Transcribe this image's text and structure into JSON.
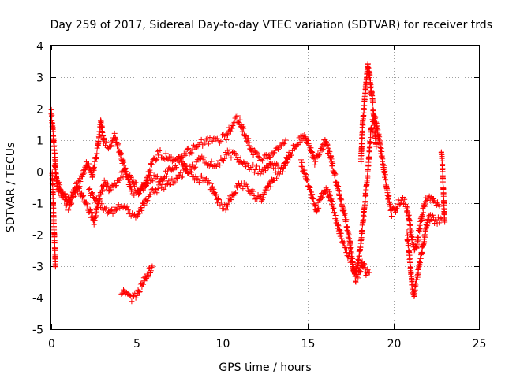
{
  "chart_data": {
    "type": "scatter",
    "title": "Day 259 of 2017, Sidereal Day-to-day VTEC variation (SDTVAR) for receiver trds",
    "xlabel": "GPS time / hours",
    "ylabel": "SDTVAR / TECUs",
    "xlim": [
      0,
      25
    ],
    "ylim": [
      -5,
      4
    ],
    "xticks": [
      "0",
      "5",
      "10",
      "15",
      "20",
      "25"
    ],
    "yticks": [
      "4",
      "3",
      "2",
      "1",
      "0",
      "-1",
      "-2",
      "-3",
      "-4",
      "-5"
    ],
    "grid": true,
    "marker": "+",
    "color": "#ff0000",
    "series": [
      {
        "name": "trds",
        "tracks": [
          [
            [
              0.0,
              1.9
            ],
            [
              0.1,
              1.3
            ],
            [
              0.2,
              0.6
            ],
            [
              0.3,
              -0.3
            ],
            [
              0.5,
              -0.6
            ],
            [
              0.8,
              -0.7
            ],
            [
              1.1,
              -1.0
            ],
            [
              1.5,
              -0.4
            ],
            [
              1.8,
              -0.2
            ],
            [
              2.1,
              0.3
            ],
            [
              2.4,
              -0.1
            ],
            [
              2.7,
              0.7
            ],
            [
              2.9,
              1.6
            ],
            [
              3.1,
              0.9
            ],
            [
              3.4,
              0.8
            ],
            [
              3.7,
              1.1
            ],
            [
              4.0,
              0.6
            ],
            [
              4.3,
              0.1
            ],
            [
              4.7,
              -0.6
            ],
            [
              5.1,
              -0.7
            ],
            [
              5.5,
              -0.4
            ],
            [
              5.9,
              0.3
            ],
            [
              6.3,
              0.6
            ],
            [
              6.7,
              0.5
            ],
            [
              7.2,
              0.3
            ],
            [
              7.7,
              0.5
            ],
            [
              8.2,
              0.7
            ],
            [
              8.7,
              0.9
            ],
            [
              9.2,
              1.0
            ],
            [
              9.7,
              1.0
            ],
            [
              10.2,
              1.1
            ],
            [
              10.6,
              1.5
            ],
            [
              10.9,
              1.7
            ],
            [
              11.3,
              1.2
            ],
            [
              11.7,
              0.7
            ],
            [
              12.2,
              0.4
            ],
            [
              12.7,
              0.5
            ],
            [
              13.2,
              0.8
            ],
            [
              13.7,
              1.0
            ]
          ],
          [
            [
              0.2,
              0.1
            ],
            [
              0.4,
              -0.4
            ],
            [
              0.7,
              -0.8
            ],
            [
              1.0,
              -1.1
            ],
            [
              1.3,
              -0.7
            ],
            [
              1.6,
              -0.5
            ],
            [
              1.9,
              -0.9
            ],
            [
              2.2,
              -1.2
            ],
            [
              2.5,
              -1.6
            ],
            [
              2.8,
              -0.8
            ],
            [
              3.1,
              -0.3
            ],
            [
              3.4,
              -0.6
            ],
            [
              3.7,
              -0.4
            ],
            [
              4.0,
              -0.2
            ],
            [
              4.3,
              0.0
            ],
            [
              4.6,
              -0.1
            ],
            [
              4.9,
              -0.4
            ],
            [
              5.2,
              -0.6
            ],
            [
              5.6,
              -0.3
            ],
            [
              6.0,
              -0.2
            ],
            [
              6.4,
              -0.3
            ],
            [
              6.8,
              0.0
            ],
            [
              7.2,
              0.2
            ],
            [
              7.6,
              0.4
            ],
            [
              8.0,
              0.0
            ],
            [
              8.5,
              -0.2
            ],
            [
              9.0,
              -0.3
            ],
            [
              9.4,
              -0.5
            ],
            [
              9.8,
              -1.0
            ],
            [
              10.2,
              -1.1
            ],
            [
              10.6,
              -0.7
            ],
            [
              11.0,
              -0.4
            ],
            [
              11.4,
              -0.5
            ],
            [
              11.8,
              -0.7
            ],
            [
              12.2,
              -0.9
            ],
            [
              12.6,
              -0.6
            ],
            [
              13.0,
              -0.2
            ],
            [
              13.4,
              0.0
            ],
            [
              13.8,
              0.3
            ]
          ],
          [
            [
              2.2,
              -0.6
            ],
            [
              2.6,
              -0.9
            ],
            [
              3.0,
              -1.1
            ],
            [
              3.4,
              -1.3
            ],
            [
              3.8,
              -1.2
            ],
            [
              4.2,
              -1.1
            ],
            [
              4.6,
              -1.3
            ],
            [
              5.0,
              -1.4
            ],
            [
              5.4,
              -1.0
            ],
            [
              5.8,
              -0.7
            ],
            [
              6.3,
              -0.5
            ],
            [
              6.8,
              -0.4
            ],
            [
              7.3,
              -0.2
            ],
            [
              7.8,
              0.0
            ],
            [
              8.3,
              0.2
            ],
            [
              8.8,
              0.4
            ],
            [
              9.3,
              0.2
            ],
            [
              9.8,
              0.3
            ],
            [
              10.3,
              0.6
            ],
            [
              10.8,
              0.5
            ],
            [
              11.3,
              0.2
            ],
            [
              11.8,
              0.1
            ],
            [
              12.3,
              0.0
            ],
            [
              12.8,
              0.3
            ],
            [
              13.3,
              0.1
            ]
          ],
          [
            [
              4.1,
              -3.8
            ],
            [
              4.4,
              -3.9
            ],
            [
              4.7,
              -4.0
            ],
            [
              5.0,
              -3.9
            ],
            [
              5.3,
              -3.6
            ],
            [
              5.6,
              -3.3
            ],
            [
              5.9,
              -3.0
            ]
          ],
          [
            [
              0.05,
              0.0
            ],
            [
              0.1,
              -0.8
            ],
            [
              0.15,
              -1.6
            ],
            [
              0.2,
              -2.3
            ],
            [
              0.25,
              -3.0
            ]
          ],
          [
            [
              13.6,
              0.2
            ],
            [
              14.0,
              0.6
            ],
            [
              14.4,
              0.9
            ],
            [
              14.8,
              1.2
            ],
            [
              15.1,
              0.8
            ],
            [
              15.4,
              0.3
            ],
            [
              15.7,
              0.6
            ],
            [
              16.0,
              1.0
            ],
            [
              16.3,
              0.5
            ],
            [
              16.6,
              -0.2
            ],
            [
              16.9,
              -0.8
            ],
            [
              17.2,
              -1.5
            ],
            [
              17.5,
              -2.4
            ],
            [
              17.7,
              -3.2
            ],
            [
              17.9,
              -3.0
            ],
            [
              18.1,
              -2.2
            ],
            [
              18.3,
              -1.2
            ],
            [
              18.5,
              0.0
            ],
            [
              18.7,
              1.4
            ],
            [
              18.9,
              1.8
            ],
            [
              19.1,
              1.2
            ],
            [
              19.3,
              0.6
            ],
            [
              19.5,
              -0.1
            ],
            [
              19.7,
              -0.8
            ],
            [
              19.9,
              -1.3
            ],
            [
              20.1,
              -1.2
            ],
            [
              20.3,
              -1.0
            ],
            [
              20.5,
              -0.9
            ],
            [
              20.7,
              -1.0
            ],
            [
              20.9,
              -1.4
            ],
            [
              21.1,
              -2.2
            ],
            [
              21.3,
              -2.5
            ],
            [
              21.5,
              -1.9
            ],
            [
              21.7,
              -1.3
            ],
            [
              21.9,
              -0.9
            ],
            [
              22.1,
              -0.8
            ],
            [
              22.4,
              -1.0
            ],
            [
              22.7,
              -1.1
            ]
          ],
          [
            [
              14.6,
              0.3
            ],
            [
              14.9,
              -0.2
            ],
            [
              15.2,
              -0.7
            ],
            [
              15.5,
              -1.2
            ],
            [
              15.8,
              -0.8
            ],
            [
              16.1,
              -0.5
            ],
            [
              16.4,
              -1.0
            ],
            [
              16.7,
              -1.6
            ],
            [
              17.0,
              -2.2
            ],
            [
              17.3,
              -2.6
            ],
            [
              17.6,
              -2.9
            ],
            [
              17.8,
              -3.4
            ],
            [
              18.0,
              -3.2
            ],
            [
              18.2,
              -2.9
            ],
            [
              18.4,
              -3.2
            ],
            [
              18.6,
              -3.2
            ]
          ],
          [
            [
              18.1,
              0.3
            ],
            [
              18.2,
              1.5
            ],
            [
              18.3,
              2.2
            ],
            [
              18.4,
              2.8
            ],
            [
              18.5,
              3.4
            ],
            [
              18.6,
              3.1
            ],
            [
              18.7,
              2.6
            ],
            [
              18.8,
              2.1
            ],
            [
              18.9,
              1.4
            ],
            [
              19.0,
              0.8
            ]
          ],
          [
            [
              20.8,
              -2.0
            ],
            [
              21.0,
              -3.0
            ],
            [
              21.1,
              -3.7
            ],
            [
              21.2,
              -3.9
            ],
            [
              21.4,
              -3.3
            ],
            [
              21.6,
              -2.7
            ],
            [
              21.8,
              -2.1
            ],
            [
              22.0,
              -1.6
            ],
            [
              22.2,
              -1.4
            ],
            [
              22.5,
              -1.6
            ],
            [
              22.8,
              -1.5
            ]
          ],
          [
            [
              22.8,
              0.7
            ],
            [
              22.85,
              0.3
            ],
            [
              22.9,
              -0.3
            ],
            [
              22.95,
              -1.0
            ],
            [
              23.0,
              -1.6
            ]
          ]
        ]
      }
    ]
  }
}
